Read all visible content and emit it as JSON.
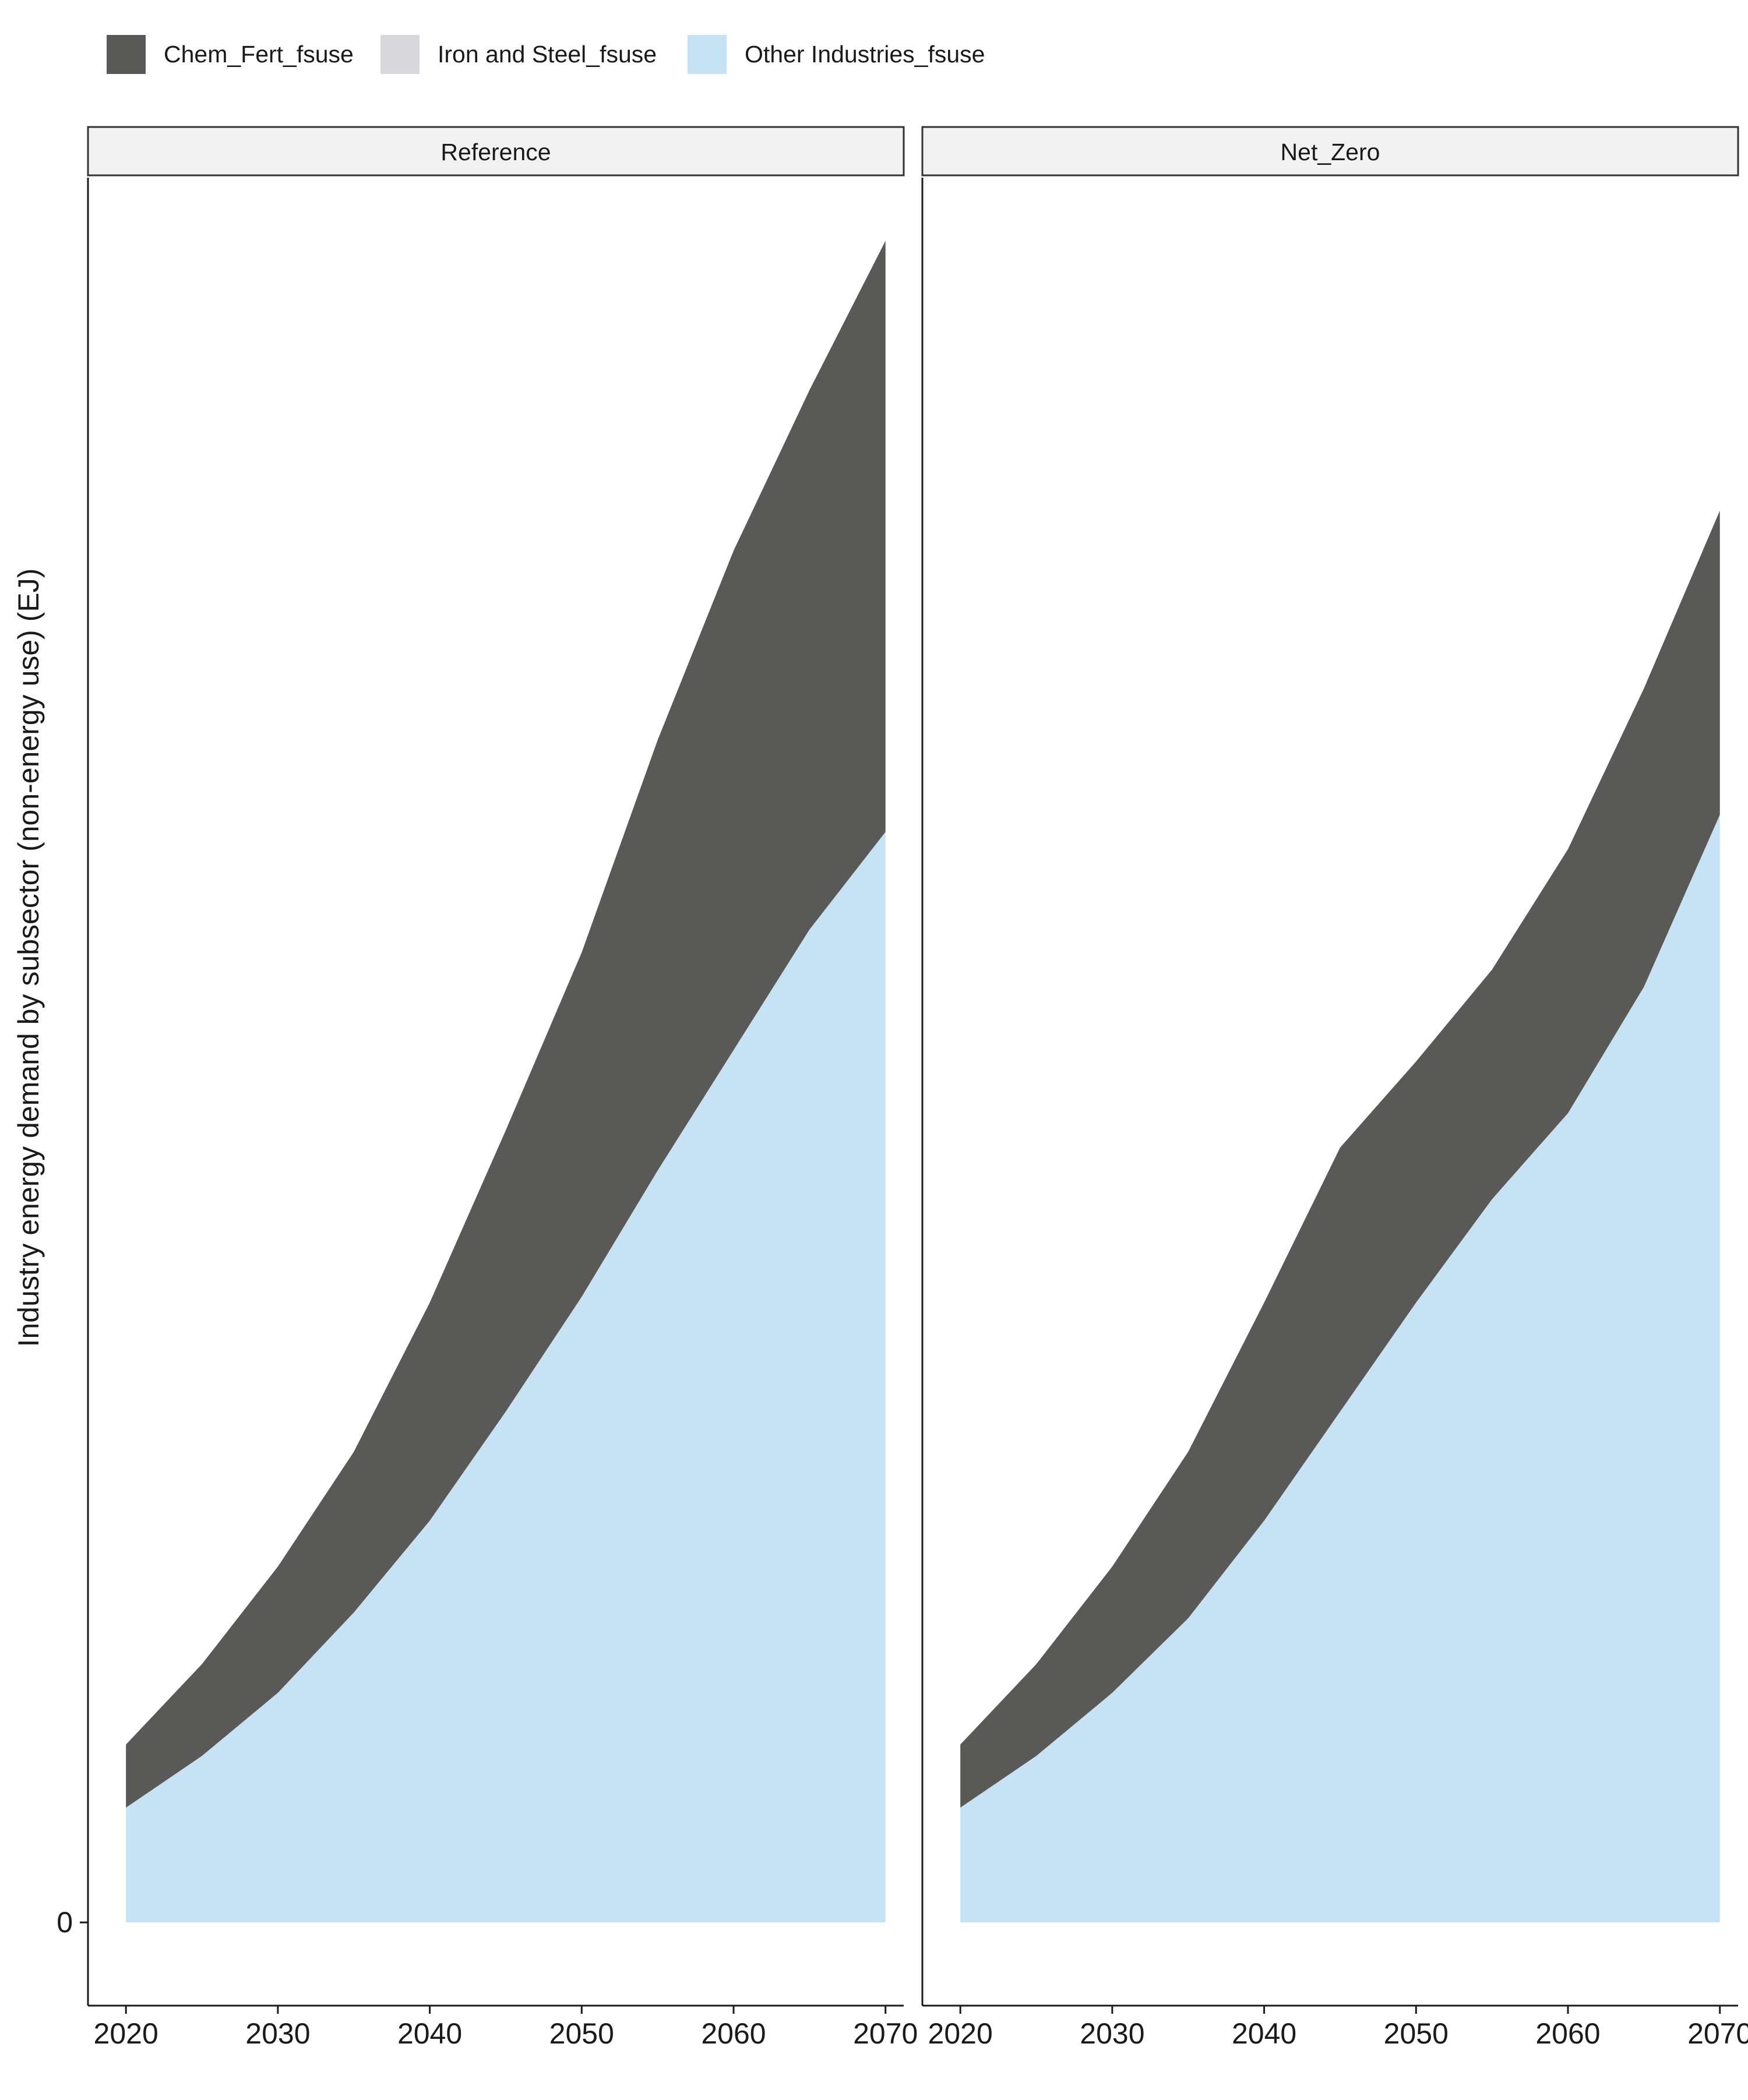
{
  "chart_data": {
    "type": "area",
    "stacked": true,
    "ylabel": "Industry energy demand by subsector (non-energy use) (EJ)",
    "xlabel": "",
    "x": [
      2020,
      2025,
      2030,
      2035,
      2040,
      2045,
      2050,
      2055,
      2060,
      2065,
      2070
    ],
    "x_ticks": [
      2020,
      2030,
      2040,
      2050,
      2060,
      2070
    ],
    "y_ticks": [
      0
    ],
    "y_tick_labels": [
      "0"
    ],
    "ylim": [
      -1.45,
      30.4
    ],
    "legend_position": "top-left",
    "grid": false,
    "series_order": [
      "Other Industries_fsuse",
      "Iron and Steel_fsuse",
      "Chem_Fert_fsuse"
    ],
    "legend": [
      {
        "name": "Chem_Fert_fsuse",
        "color": "#595957"
      },
      {
        "name": "Iron and Steel_fsuse",
        "color": "#d8d8dc"
      },
      {
        "name": "Other Industries_fsuse",
        "color": "#c5e3f4"
      }
    ],
    "panels": [
      {
        "name": "Reference",
        "series": [
          {
            "name": "Other Industries_fsuse",
            "color": "#c5e3f4",
            "values": [
              2.0,
              2.9,
              4.0,
              5.4,
              7.0,
              8.9,
              10.9,
              13.1,
              15.2,
              17.3,
              19.0
            ]
          },
          {
            "name": "Iron and Steel_fsuse",
            "color": "#d8d8dc",
            "values": [
              0,
              0,
              0,
              0,
              0,
              0,
              0,
              0,
              0,
              0,
              0
            ]
          },
          {
            "name": "Chem_Fert_fsuse",
            "color": "#595957",
            "values": [
              1.1,
              1.6,
              2.2,
              2.8,
              3.8,
              4.9,
              6.0,
              7.5,
              8.7,
              9.4,
              10.3
            ]
          }
        ]
      },
      {
        "name": "Net_Zero",
        "series": [
          {
            "name": "Other Industries_fsuse",
            "color": "#c5e3f4",
            "values": [
              2.0,
              2.9,
              4.0,
              5.3,
              7.0,
              8.9,
              10.8,
              12.6,
              14.1,
              16.3,
              19.3
            ]
          },
          {
            "name": "Iron and Steel_fsuse",
            "color": "#d8d8dc",
            "values": [
              0,
              0,
              0,
              0,
              0,
              0,
              0,
              0,
              0,
              0,
              0
            ]
          },
          {
            "name": "Chem_Fert_fsuse",
            "color": "#595957",
            "values": [
              1.1,
              1.6,
              2.2,
              2.9,
              3.8,
              4.6,
              4.2,
              4.0,
              4.6,
              5.2,
              5.3
            ]
          }
        ]
      }
    ]
  }
}
